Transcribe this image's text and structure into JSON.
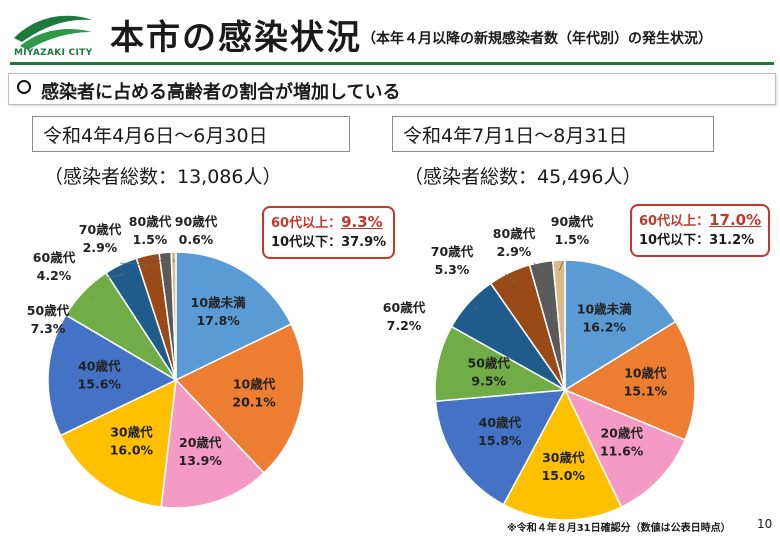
{
  "header": {
    "logo_text": "MIYAZAKI CITY",
    "title": "本市の感染状況",
    "subtitle": "（本年４月以降の新規感染者数（年代別）の発生状況）"
  },
  "banner": {
    "text": "感染者に占める高齢者の割合が増加している"
  },
  "colors": {
    "brand_green": "#1e7a3c",
    "highlight_red": "#c0392b"
  },
  "chart_data": [
    {
      "type": "pie",
      "title": "令和4年4月6日～6月30日",
      "total": "（感染者総数：13,086人）",
      "categories": [
        "10歳未満",
        "10歳代",
        "20歳代",
        "30歳代",
        "40歳代",
        "50歳代",
        "60歳代",
        "70歳代",
        "80歳代",
        "90歳代"
      ],
      "values": [
        17.8,
        20.1,
        13.9,
        16.0,
        15.6,
        7.3,
        4.2,
        2.9,
        1.5,
        0.6
      ],
      "value_labels": [
        "17.8%",
        "20.1%",
        "13.9%",
        "16.0%",
        "15.6%",
        "7.3%",
        "4.2%",
        "2.9%",
        "1.5%",
        "0.6%"
      ],
      "colors": [
        "#5b9bd5",
        "#ed7d31",
        "#f59ac4",
        "#ffc000",
        "#4472c4",
        "#70ad47",
        "#1f5c8c",
        "#9a4a17",
        "#5a5a5a",
        "#d9b88a"
      ],
      "badge": {
        "over60_label": "60代以上：",
        "over60_value": "9.3%",
        "under10s": "10代以下：37.9%"
      }
    },
    {
      "type": "pie",
      "title": "令和4年7月1日～8月31日",
      "total": "（感染者総数：45,496人）",
      "categories": [
        "10歳未満",
        "10歳代",
        "20歳代",
        "30歳代",
        "40歳代",
        "50歳代",
        "60歳代",
        "70歳代",
        "80歳代",
        "90歳代"
      ],
      "values": [
        16.2,
        15.1,
        11.6,
        15.0,
        15.8,
        9.5,
        7.2,
        5.3,
        2.9,
        1.5
      ],
      "value_labels": [
        "16.2%",
        "15.1%",
        "11.6%",
        "15.0%",
        "15.8%",
        "9.5%",
        "7.2%",
        "5.3%",
        "2.9%",
        "1.5%"
      ],
      "colors": [
        "#5b9bd5",
        "#ed7d31",
        "#f59ac4",
        "#ffc000",
        "#4472c4",
        "#70ad47",
        "#1f5c8c",
        "#9a4a17",
        "#5a5a5a",
        "#d9b88a"
      ],
      "badge": {
        "over60_label": "60代以上：",
        "over60_value": "17.0%",
        "under10s": "10代以下：31.2%"
      }
    }
  ],
  "footnote": "※令和４年８月31日確認分（数値は公表日時点）",
  "page_number": "10"
}
